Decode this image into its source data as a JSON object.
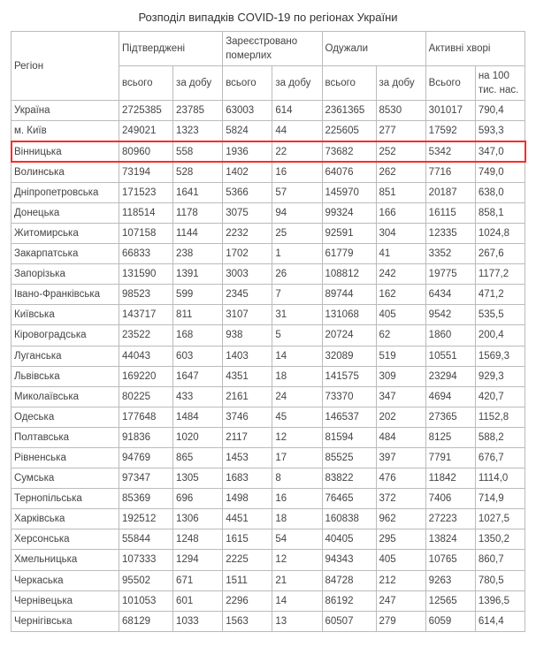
{
  "title": "Розподіл випадків COVID-19 по регіонах України",
  "headers": {
    "region": "Регіон",
    "confirmed": "Підтверджені",
    "deaths": "Зареєстровано померлих",
    "recovered": "Одужали",
    "active": "Активні хворі",
    "total": "всього",
    "per_day": "за добу",
    "all_cap": "Всього",
    "per100k": "на 100 тис. нас."
  },
  "highlight_row_index": 2,
  "highlight_color": "#ff2a2a",
  "rows": [
    {
      "region": "Україна",
      "c_total": "2725385",
      "c_day": "23785",
      "d_total": "63003",
      "d_day": "614",
      "r_total": "2361365",
      "r_day": "8530",
      "a_total": "301017",
      "a_per": "790,4"
    },
    {
      "region": "м. Київ",
      "c_total": "249021",
      "c_day": "1323",
      "d_total": "5824",
      "d_day": "44",
      "r_total": "225605",
      "r_day": "277",
      "a_total": "17592",
      "a_per": "593,3"
    },
    {
      "region": "Вінницька",
      "c_total": "80960",
      "c_day": "558",
      "d_total": "1936",
      "d_day": "22",
      "r_total": "73682",
      "r_day": "252",
      "a_total": "5342",
      "a_per": "347,0"
    },
    {
      "region": "Волинська",
      "c_total": "73194",
      "c_day": "528",
      "d_total": "1402",
      "d_day": "16",
      "r_total": "64076",
      "r_day": "262",
      "a_total": "7716",
      "a_per": "749,0"
    },
    {
      "region": "Дніпропетровська",
      "c_total": "171523",
      "c_day": "1641",
      "d_total": "5366",
      "d_day": "57",
      "r_total": "145970",
      "r_day": "851",
      "a_total": "20187",
      "a_per": "638,0"
    },
    {
      "region": "Донецька",
      "c_total": "118514",
      "c_day": "1178",
      "d_total": "3075",
      "d_day": "94",
      "r_total": "99324",
      "r_day": "166",
      "a_total": "16115",
      "a_per": "858,1"
    },
    {
      "region": "Житомирська",
      "c_total": "107158",
      "c_day": "1144",
      "d_total": "2232",
      "d_day": "25",
      "r_total": "92591",
      "r_day": "304",
      "a_total": "12335",
      "a_per": "1024,8"
    },
    {
      "region": "Закарпатська",
      "c_total": "66833",
      "c_day": "238",
      "d_total": "1702",
      "d_day": "1",
      "r_total": "61779",
      "r_day": "41",
      "a_total": "3352",
      "a_per": "267,6"
    },
    {
      "region": "Запорізька",
      "c_total": "131590",
      "c_day": "1391",
      "d_total": "3003",
      "d_day": "26",
      "r_total": "108812",
      "r_day": "242",
      "a_total": "19775",
      "a_per": "1177,2"
    },
    {
      "region": "Івано-Франківська",
      "c_total": "98523",
      "c_day": "599",
      "d_total": "2345",
      "d_day": "7",
      "r_total": "89744",
      "r_day": "162",
      "a_total": "6434",
      "a_per": "471,2"
    },
    {
      "region": "Київська",
      "c_total": "143717",
      "c_day": "811",
      "d_total": "3107",
      "d_day": "31",
      "r_total": "131068",
      "r_day": "405",
      "a_total": "9542",
      "a_per": "535,5"
    },
    {
      "region": "Кіровоградська",
      "c_total": "23522",
      "c_day": "168",
      "d_total": "938",
      "d_day": "5",
      "r_total": "20724",
      "r_day": "62",
      "a_total": "1860",
      "a_per": "200,4"
    },
    {
      "region": "Луганська",
      "c_total": "44043",
      "c_day": "603",
      "d_total": "1403",
      "d_day": "14",
      "r_total": "32089",
      "r_day": "519",
      "a_total": "10551",
      "a_per": "1569,3"
    },
    {
      "region": "Львівська",
      "c_total": "169220",
      "c_day": "1647",
      "d_total": "4351",
      "d_day": "18",
      "r_total": "141575",
      "r_day": "309",
      "a_total": "23294",
      "a_per": "929,3"
    },
    {
      "region": "Миколаївська",
      "c_total": "80225",
      "c_day": "433",
      "d_total": "2161",
      "d_day": "24",
      "r_total": "73370",
      "r_day": "347",
      "a_total": "4694",
      "a_per": "420,7"
    },
    {
      "region": "Одеська",
      "c_total": "177648",
      "c_day": "1484",
      "d_total": "3746",
      "d_day": "45",
      "r_total": "146537",
      "r_day": "202",
      "a_total": "27365",
      "a_per": "1152,8"
    },
    {
      "region": "Полтавська",
      "c_total": "91836",
      "c_day": "1020",
      "d_total": "2117",
      "d_day": "12",
      "r_total": "81594",
      "r_day": "484",
      "a_total": "8125",
      "a_per": "588,2"
    },
    {
      "region": "Рівненська",
      "c_total": "94769",
      "c_day": "865",
      "d_total": "1453",
      "d_day": "17",
      "r_total": "85525",
      "r_day": "397",
      "a_total": "7791",
      "a_per": "676,7"
    },
    {
      "region": "Сумська",
      "c_total": "97347",
      "c_day": "1305",
      "d_total": "1683",
      "d_day": "8",
      "r_total": "83822",
      "r_day": "476",
      "a_total": "11842",
      "a_per": "1114,0"
    },
    {
      "region": "Тернопільська",
      "c_total": "85369",
      "c_day": "696",
      "d_total": "1498",
      "d_day": "16",
      "r_total": "76465",
      "r_day": "372",
      "a_total": "7406",
      "a_per": "714,9"
    },
    {
      "region": "Харківська",
      "c_total": "192512",
      "c_day": "1306",
      "d_total": "4451",
      "d_day": "18",
      "r_total": "160838",
      "r_day": "962",
      "a_total": "27223",
      "a_per": "1027,5"
    },
    {
      "region": "Херсонська",
      "c_total": "55844",
      "c_day": "1248",
      "d_total": "1615",
      "d_day": "54",
      "r_total": "40405",
      "r_day": "295",
      "a_total": "13824",
      "a_per": "1350,2"
    },
    {
      "region": "Хмельницька",
      "c_total": "107333",
      "c_day": "1294",
      "d_total": "2225",
      "d_day": "12",
      "r_total": "94343",
      "r_day": "405",
      "a_total": "10765",
      "a_per": "860,7"
    },
    {
      "region": "Черкаська",
      "c_total": "95502",
      "c_day": "671",
      "d_total": "1511",
      "d_day": "21",
      "r_total": "84728",
      "r_day": "212",
      "a_total": "9263",
      "a_per": "780,5"
    },
    {
      "region": "Чернівецька",
      "c_total": "101053",
      "c_day": "601",
      "d_total": "2296",
      "d_day": "14",
      "r_total": "86192",
      "r_day": "247",
      "a_total": "12565",
      "a_per": "1396,5"
    },
    {
      "region": "Чернігівська",
      "c_total": "68129",
      "c_day": "1033",
      "d_total": "1563",
      "d_day": "13",
      "r_total": "60507",
      "r_day": "279",
      "a_total": "6059",
      "a_per": "614,4"
    }
  ]
}
